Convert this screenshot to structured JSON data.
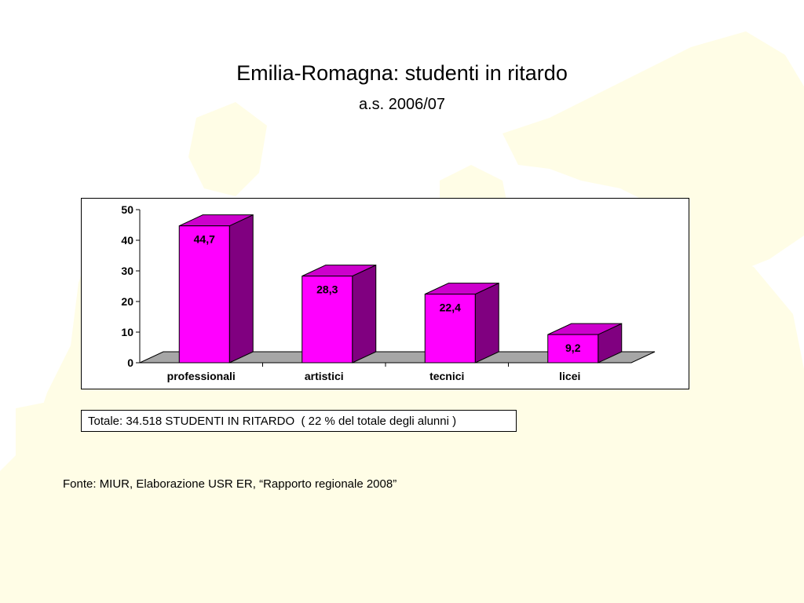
{
  "slide": {
    "title": "Emilia-Romagna: studenti in ritardo",
    "subtitle": "a.s. 2006/07",
    "total_note": "Totale: 34.518 STUDENTI IN RITARDO  ( 22 % del totale degli alunni )",
    "source": "Fonte: MIUR, Elaborazione USR ER, “Rapporto regionale 2008”",
    "background_color": "#fffde6"
  },
  "chart_data": {
    "type": "bar",
    "style": "3d",
    "categories": [
      "professionali",
      "artistici",
      "tecnici",
      "licei"
    ],
    "values": [
      44.7,
      28.3,
      22.4,
      9.2
    ],
    "data_labels": [
      "44,7",
      "28,3",
      "22,4",
      "9,2"
    ],
    "ylim": [
      0,
      50
    ],
    "yticks": [
      "0",
      "10",
      "20",
      "30",
      "40",
      "50"
    ],
    "ytick_values": [
      0,
      10,
      20,
      30,
      40,
      50
    ],
    "grid": false,
    "legend": "none",
    "colors": {
      "bar_front": "#ff00ff",
      "bar_top": "#cc00cc",
      "bar_side": "#800080",
      "floor": "#a6a6a6"
    }
  }
}
